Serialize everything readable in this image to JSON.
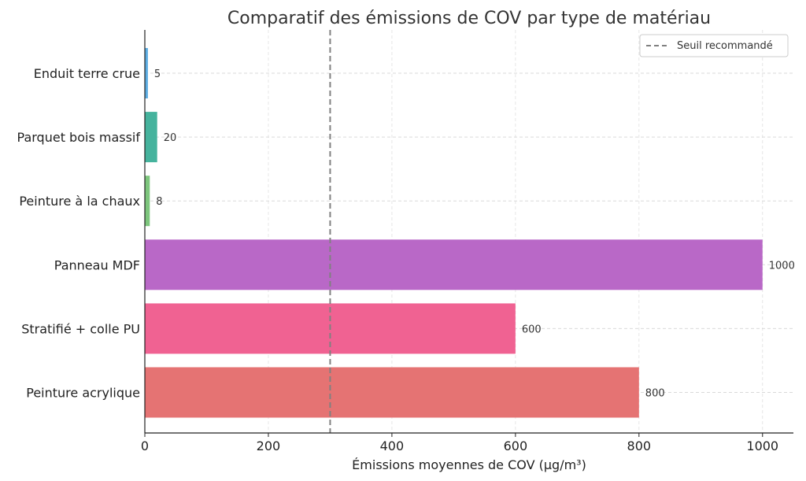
{
  "chart_data": {
    "type": "bar",
    "orientation": "horizontal",
    "title": "Comparatif des émissions de COV par type de matériau",
    "xlabel": "Émissions moyennes de COV (µg/m³)",
    "ylabel": "",
    "categories": [
      "Enduit terre crue",
      "Parquet bois massif",
      "Peinture à la chaux",
      "Panneau MDF",
      "Stratifié + colle PU",
      "Peinture acrylique"
    ],
    "values": [
      5,
      20,
      8,
      1000,
      600,
      800
    ],
    "colors": [
      "#5DADE2",
      "#45B39D",
      "#7DC67D",
      "#B968C7",
      "#F06292",
      "#E57373"
    ],
    "data_labels": [
      "5",
      "20",
      "8",
      "1000",
      "600",
      "800"
    ],
    "xlim": [
      0,
      1050
    ],
    "xticks": [
      0,
      200,
      400,
      600,
      800,
      1000
    ],
    "xtick_labels": [
      "0",
      "200",
      "400",
      "600",
      "800",
      "1000"
    ],
    "grid": true,
    "reference_line": {
      "value": 300,
      "label": "Seuil recommandé",
      "style": "dashed",
      "color": "#808080"
    },
    "legend": {
      "position": "top-right",
      "entries": [
        "Seuil recommandé"
      ]
    }
  }
}
